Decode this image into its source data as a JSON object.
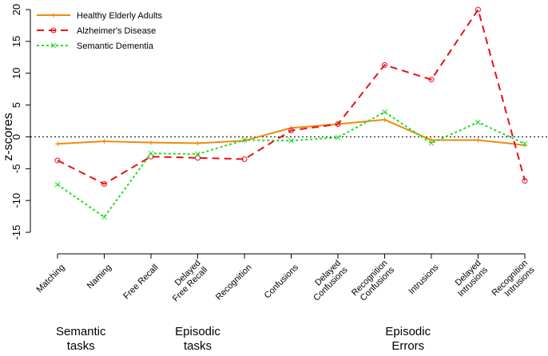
{
  "chart_data": {
    "type": "line",
    "title": "",
    "xlabel": "",
    "ylabel": "z-scores",
    "ylim": [
      -17,
      20
    ],
    "yticks": [
      -15,
      -10,
      -5,
      0,
      5,
      10,
      15,
      20
    ],
    "reference_line": 0,
    "categories": [
      [
        "Matching"
      ],
      [
        "Naming"
      ],
      [
        "Free Recall"
      ],
      [
        "Delayed",
        "Free Recall"
      ],
      [
        "Recognition"
      ],
      [
        "Confusions"
      ],
      [
        "Delayed",
        "Confusions"
      ],
      [
        "Recognition",
        "Confusions"
      ],
      [
        "Intrusions"
      ],
      [
        "Delayed",
        "Intrusions"
      ],
      [
        "Recognition",
        "Intrusions"
      ]
    ],
    "series": [
      {
        "name": "Healthy Elderly Adults",
        "color": "#f08a0c",
        "dash": "solid",
        "marker": "+",
        "values": [
          -1.1,
          -0.7,
          -0.9,
          -1.0,
          -0.6,
          1.4,
          2.0,
          2.7,
          -0.5,
          -0.5,
          -1.3
        ]
      },
      {
        "name": "Alzheimer's Disease",
        "color": "#e8101a",
        "dash": "dashed",
        "marker": "o",
        "values": [
          -3.7,
          -7.4,
          -3.1,
          -3.3,
          -3.5,
          1.0,
          2.0,
          11.3,
          9.0,
          20.0,
          -6.9
        ]
      },
      {
        "name": "Semantic Dementia",
        "color": "#22dd22",
        "dash": "dotted",
        "marker": "x",
        "values": [
          -7.5,
          -12.6,
          -2.6,
          -2.7,
          -0.5,
          -0.6,
          -0.1,
          3.9,
          -1.0,
          2.3,
          -1.1
        ]
      }
    ],
    "legend_position": "top-left",
    "groups": [
      {
        "lines": [
          "Semantic",
          "tasks"
        ],
        "from": 0,
        "to": 1
      },
      {
        "lines": [
          "Episodic",
          "tasks"
        ],
        "from": 2,
        "to": 4
      },
      {
        "lines": [
          "Episodic",
          "Errors"
        ],
        "from": 5,
        "to": 10
      }
    ]
  }
}
